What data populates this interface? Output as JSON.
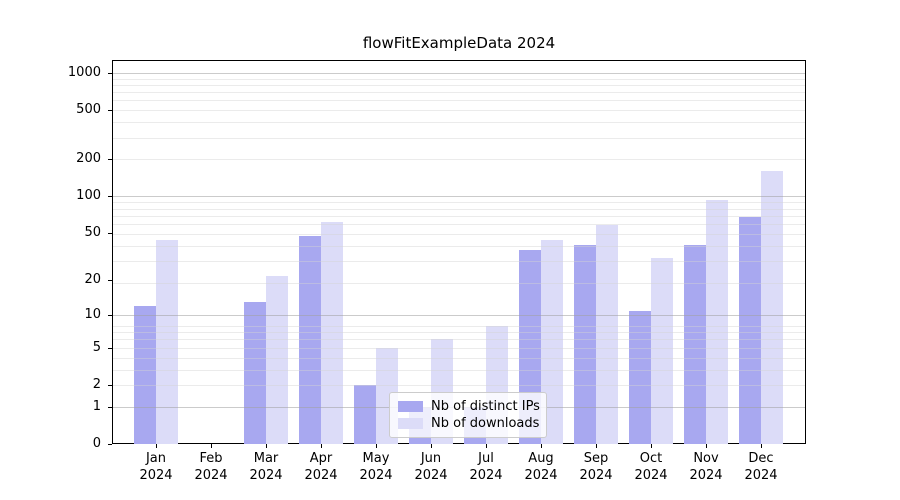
{
  "chart_data": {
    "type": "bar",
    "title": "flowFitExampleData 2024",
    "categories": [
      "Jan 2024",
      "Feb 2024",
      "Mar 2024",
      "Apr 2024",
      "May 2024",
      "Jun 2024",
      "Jul 2024",
      "Aug 2024",
      "Sep 2024",
      "Oct 2024",
      "Nov 2024",
      "Dec 2024"
    ],
    "month_labels": [
      "Jan",
      "Feb",
      "Mar",
      "Apr",
      "May",
      "Jun",
      "Jul",
      "Aug",
      "Sep",
      "Oct",
      "Nov",
      "Dec"
    ],
    "year_label": "2024",
    "series": [
      {
        "name": "Nb of distinct IPs",
        "color": "#a8a8f0",
        "values": [
          12,
          0,
          13,
          47,
          2,
          1,
          1,
          36,
          40,
          11,
          40,
          67
        ]
      },
      {
        "name": "Nb of downloads",
        "color": "#dcdcf8",
        "values": [
          44,
          0,
          22,
          61,
          5,
          6,
          8,
          44,
          58,
          31,
          93,
          160
        ]
      }
    ],
    "y_scale": "log10(value+1)",
    "y_ticks": [
      0,
      1,
      2,
      5,
      10,
      20,
      50,
      100,
      200,
      500,
      1000
    ],
    "ylim": [
      0,
      1273
    ],
    "xlabel": "",
    "ylabel": "",
    "grid": true,
    "legend_position": "lower center"
  }
}
